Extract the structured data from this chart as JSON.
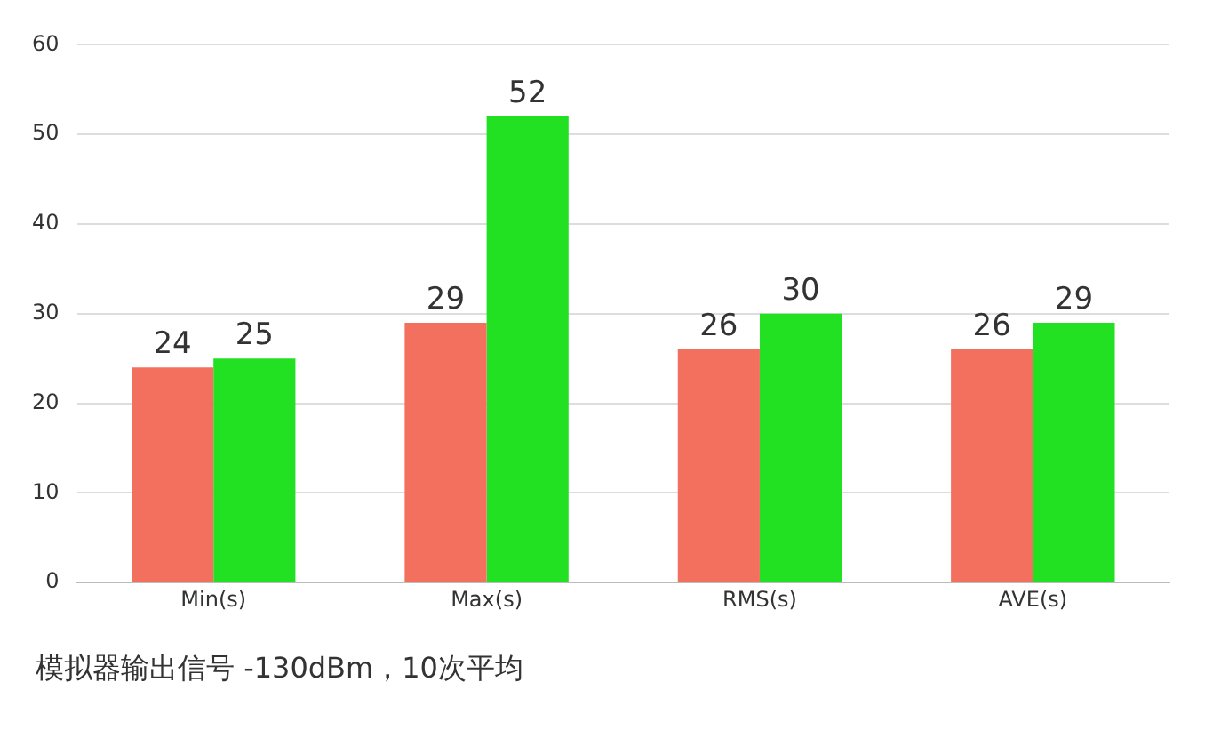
{
  "chart_data": {
    "type": "bar",
    "categories": [
      "Min(s)",
      "Max(s)",
      "RMS(s)",
      "AVE(s)"
    ],
    "series": [
      {
        "color": "#f4705e",
        "values": [
          24,
          29,
          26,
          26
        ]
      },
      {
        "color": "#22e022",
        "values": [
          25,
          52,
          30,
          29
        ]
      }
    ],
    "ylim": [
      0,
      60
    ],
    "yticks": [
      0,
      10,
      20,
      30,
      40,
      50,
      60
    ],
    "grid": "y",
    "data_labels": true,
    "annotations": [
      "模拟器输出信号 -130dBm，10次平均"
    ]
  }
}
